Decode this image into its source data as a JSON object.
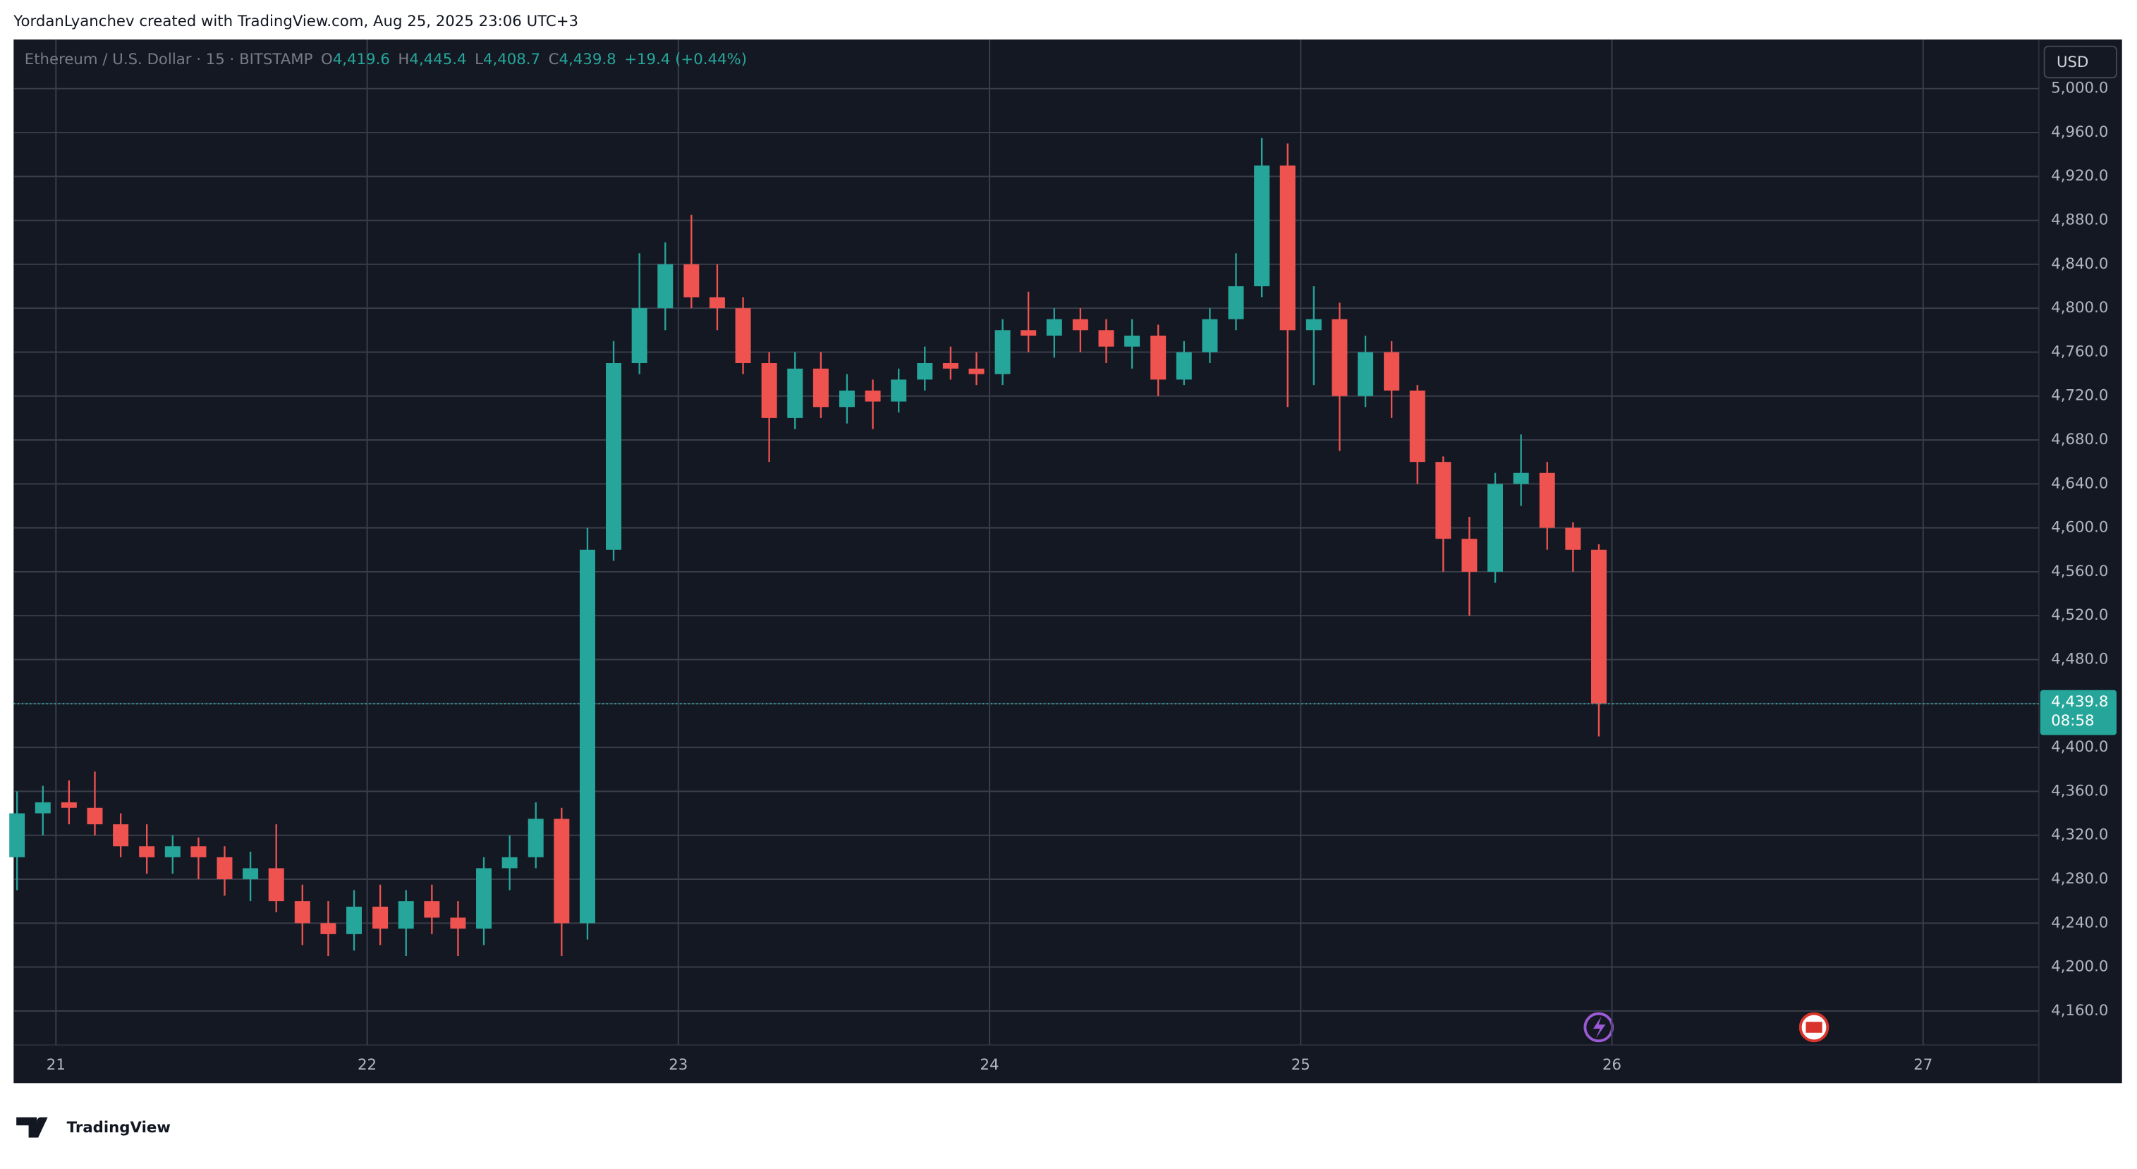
{
  "header": {
    "credit": "YordanLyanchev created with TradingView.com, Aug 25, 2025 23:06 UTC+3"
  },
  "footer": {
    "brand": "TradingView"
  },
  "chart_data": {
    "type": "candlestick",
    "title": "Ethereum / U.S. Dollar · 15 · BITSTAMP",
    "ohlc": [
      {
        "key": "O",
        "value": "4,419.6"
      },
      {
        "key": "H",
        "value": "4,445.4"
      },
      {
        "key": "L",
        "value": "4,408.7"
      },
      {
        "key": "C",
        "value": "4,439.8"
      }
    ],
    "change": "+19.4 (+0.44%)",
    "currency": "USD",
    "last_price": {
      "value": 4439.8,
      "label": "4,439.8"
    },
    "countdown": "08:58",
    "up_color": "#26a69a",
    "down_color": "#ef5350",
    "grid": true,
    "xlim": [
      20.864,
      27.372
    ],
    "xticks": [
      21,
      22,
      23,
      24,
      25,
      26,
      27
    ],
    "ylim": [
      4129,
      5044.7
    ],
    "yticks": [
      {
        "value": 4160,
        "label": "4,160.0"
      },
      {
        "value": 4200,
        "label": "4,200.0"
      },
      {
        "value": 4240,
        "label": "4,240.0"
      },
      {
        "value": 4280,
        "label": "4,280.0"
      },
      {
        "value": 4320,
        "label": "4,320.0"
      },
      {
        "value": 4360,
        "label": "4,360.0"
      },
      {
        "value": 4400,
        "label": "4,400.0"
      },
      {
        "value": 4440,
        "label": "4,440.0"
      },
      {
        "value": 4480,
        "label": "4,480.0"
      },
      {
        "value": 4520,
        "label": "4,520.0"
      },
      {
        "value": 4560,
        "label": "4,560.0"
      },
      {
        "value": 4600,
        "label": "4,600.0"
      },
      {
        "value": 4640,
        "label": "4,640.0"
      },
      {
        "value": 4680,
        "label": "4,680.0"
      },
      {
        "value": 4720,
        "label": "4,720.0"
      },
      {
        "value": 4760,
        "label": "4,760.0"
      },
      {
        "value": 4800,
        "label": "4,800.0"
      },
      {
        "value": 4840,
        "label": "4,840.0"
      },
      {
        "value": 4880,
        "label": "4,880.0"
      },
      {
        "value": 4920,
        "label": "4,920.0"
      },
      {
        "value": 4960,
        "label": "4,960.0"
      },
      {
        "value": 5000,
        "label": "5,000.0"
      }
    ],
    "x": [
      20.875,
      20.958,
      21.042,
      21.125,
      21.208,
      21.292,
      21.375,
      21.458,
      21.542,
      21.625,
      21.708,
      21.792,
      21.875,
      21.958,
      22.042,
      22.125,
      22.208,
      22.292,
      22.375,
      22.458,
      22.542,
      22.625,
      22.708,
      22.792,
      22.875,
      22.958,
      23.042,
      23.125,
      23.208,
      23.292,
      23.375,
      23.458,
      23.542,
      23.625,
      23.708,
      23.792,
      23.875,
      23.958,
      24.042,
      24.125,
      24.208,
      24.292,
      24.375,
      24.458,
      24.542,
      24.625,
      24.708,
      24.792,
      24.875,
      24.958,
      25.042,
      25.125,
      25.208,
      25.292,
      25.375,
      25.458,
      25.542,
      25.625,
      25.708,
      25.792,
      25.875,
      25.958
    ],
    "open": [
      4300,
      4340,
      4350,
      4345,
      4330,
      4310,
      4300,
      4310,
      4300,
      4280,
      4290,
      4260,
      4240,
      4230,
      4255,
      4235,
      4260,
      4245,
      4235,
      4290,
      4300,
      4335,
      4240,
      4580,
      4750,
      4800,
      4840,
      4810,
      4800,
      4750,
      4700,
      4745,
      4710,
      4725,
      4715,
      4735,
      4750,
      4745,
      4740,
      4780,
      4775,
      4790,
      4780,
      4765,
      4775,
      4735,
      4760,
      4790,
      4820,
      4930,
      4780,
      4790,
      4720,
      4760,
      4725,
      4660,
      4590,
      4560,
      4640,
      4650,
      4600,
      4580
    ],
    "high": [
      4360,
      4365,
      4370,
      4378,
      4340,
      4330,
      4320,
      4318,
      4310,
      4305,
      4330,
      4275,
      4260,
      4270,
      4275,
      4270,
      4275,
      4260,
      4300,
      4320,
      4350,
      4345,
      4600,
      4770,
      4850,
      4860,
      4885,
      4840,
      4810,
      4760,
      4760,
      4760,
      4740,
      4735,
      4745,
      4765,
      4765,
      4760,
      4790,
      4815,
      4800,
      4800,
      4790,
      4790,
      4785,
      4770,
      4800,
      4850,
      4955,
      4950,
      4820,
      4805,
      4775,
      4770,
      4730,
      4665,
      4610,
      4650,
      4685,
      4660,
      4605,
      4585
    ],
    "low": [
      4270,
      4320,
      4330,
      4320,
      4300,
      4285,
      4285,
      4280,
      4265,
      4260,
      4250,
      4220,
      4210,
      4215,
      4220,
      4210,
      4230,
      4210,
      4220,
      4270,
      4290,
      4210,
      4225,
      4570,
      4740,
      4780,
      4800,
      4780,
      4740,
      4660,
      4690,
      4700,
      4695,
      4690,
      4705,
      4725,
      4735,
      4730,
      4730,
      4760,
      4755,
      4760,
      4750,
      4745,
      4720,
      4730,
      4750,
      4780,
      4810,
      4710,
      4730,
      4670,
      4710,
      4700,
      4640,
      4560,
      4520,
      4550,
      4620,
      4580,
      4560,
      4410
    ],
    "close": [
      4340,
      4350,
      4345,
      4330,
      4310,
      4300,
      4310,
      4300,
      4280,
      4290,
      4260,
      4240,
      4230,
      4255,
      4235,
      4260,
      4245,
      4235,
      4290,
      4300,
      4335,
      4240,
      4580,
      4750,
      4800,
      4840,
      4810,
      4800,
      4750,
      4700,
      4745,
      4710,
      4725,
      4715,
      4735,
      4750,
      4745,
      4740,
      4780,
      4775,
      4790,
      4780,
      4765,
      4775,
      4735,
      4760,
      4790,
      4820,
      4930,
      4780,
      4790,
      4720,
      4760,
      4725,
      4660,
      4590,
      4560,
      4640,
      4650,
      4600,
      4580,
      4440
    ]
  }
}
